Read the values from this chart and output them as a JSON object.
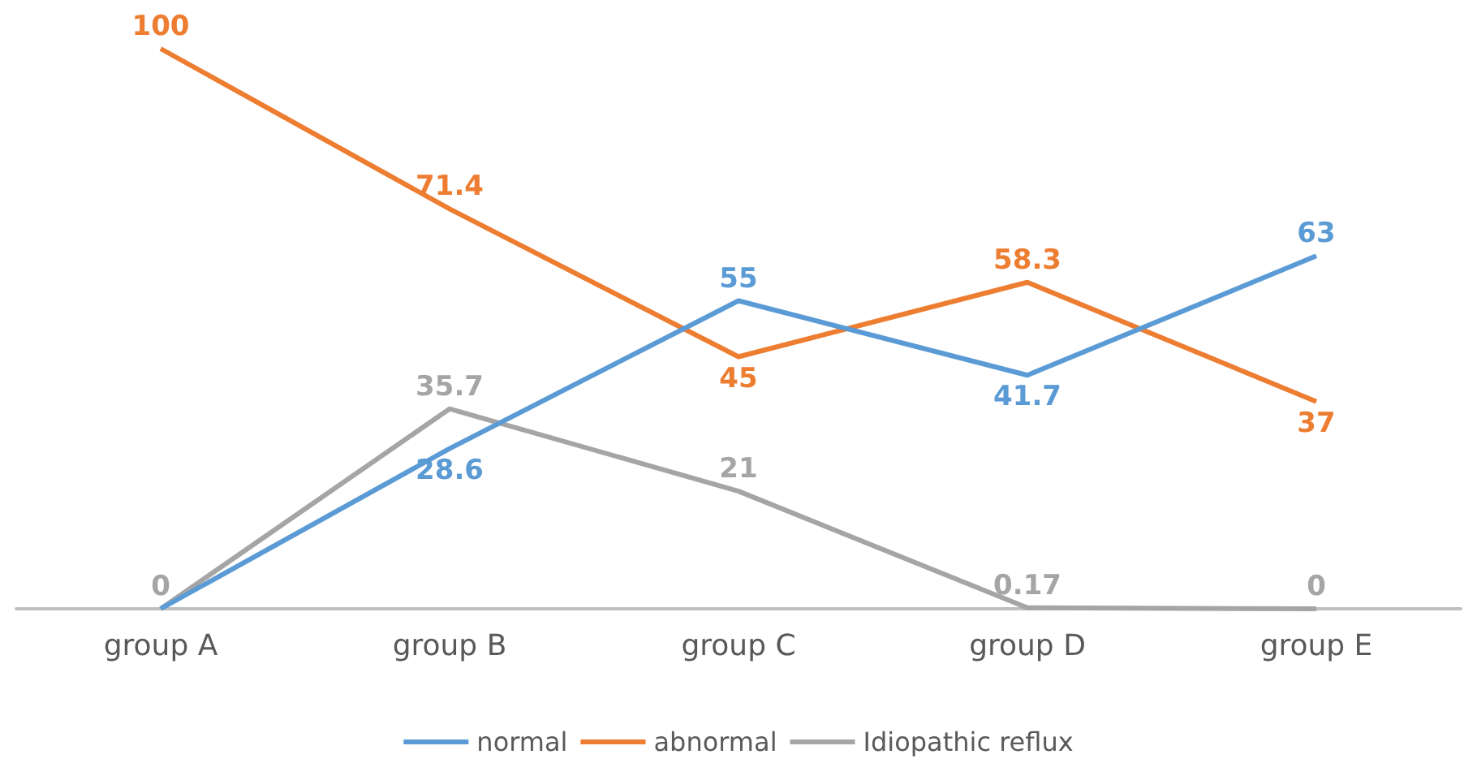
{
  "chart_data": {
    "type": "line",
    "categories": [
      "group A",
      "group B",
      "group C",
      "group D",
      "group E"
    ],
    "series": [
      {
        "name": "normal",
        "color": "#5b9bd5",
        "values": [
          0,
          28.6,
          55,
          41.7,
          63
        ],
        "value_labels": [
          null,
          "28.6",
          "55",
          "41.7",
          "63"
        ]
      },
      {
        "name": "abnormal",
        "color": "#ed7d31",
        "values": [
          100,
          71.4,
          45,
          58.3,
          37
        ],
        "value_labels": [
          "100",
          "71.4",
          "45",
          "58.3",
          "37"
        ]
      },
      {
        "name": "Idiopathic reflux",
        "color": "#a5a5a5",
        "values": [
          0,
          35.7,
          21,
          0.17,
          0
        ],
        "value_labels": [
          "0",
          "35.7",
          "21",
          "0.17",
          "0"
        ]
      }
    ],
    "legend": "bottom",
    "marker": "none",
    "grid": false
  }
}
